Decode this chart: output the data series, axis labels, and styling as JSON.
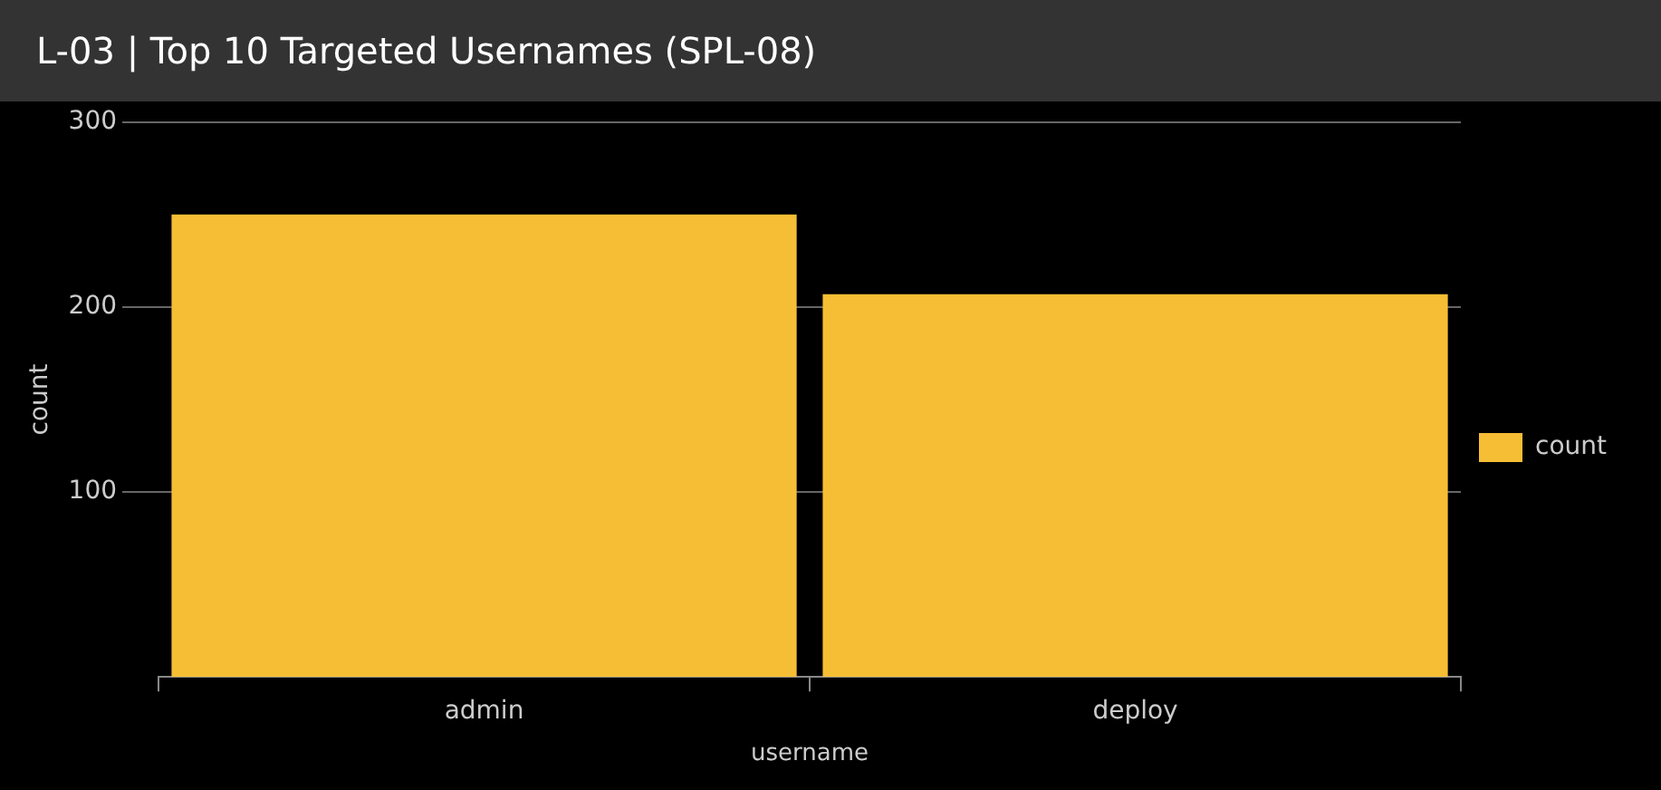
{
  "chart_data": {
    "type": "bar",
    "title": "L-03 | Top 10 Targeted Usernames (SPL-08)",
    "xlabel": "username",
    "ylabel": "count",
    "categories": [
      "admin",
      "deploy"
    ],
    "series": [
      {
        "name": "count",
        "color": "#f6be35",
        "values": [
          250,
          207
        ]
      }
    ],
    "ylim": [
      0,
      300
    ],
    "yticks": [
      100,
      200,
      300
    ],
    "grid": "y",
    "legend": "right"
  }
}
